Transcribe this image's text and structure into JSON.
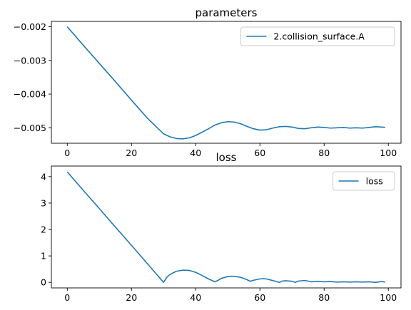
{
  "chart_data": [
    {
      "type": "line",
      "title": "parameters",
      "xlabel": "",
      "ylabel": "",
      "xlim": [
        -4.95,
        103.95
      ],
      "ylim": [
        -0.00546,
        -0.00184
      ],
      "xticks": [
        0,
        20,
        40,
        60,
        80,
        100
      ],
      "yticks": [
        -0.002,
        -0.003,
        -0.004,
        -0.005
      ],
      "ytick_labels": [
        "−0.002",
        "−0.003",
        "−0.004",
        "−0.005"
      ],
      "grid": false,
      "legend": "top-right",
      "color": "#1f77b4",
      "series": [
        {
          "name": "2.collision_surface.A",
          "x": [
            0,
            5,
            10,
            15,
            20,
            25,
            30,
            32,
            34,
            36,
            38,
            40,
            42,
            44,
            46,
            48,
            50,
            52,
            54,
            56,
            58,
            60,
            62,
            64,
            66,
            68,
            70,
            72,
            74,
            76,
            78,
            80,
            82,
            84,
            86,
            88,
            90,
            92,
            94,
            96,
            98,
            99
          ],
          "values": [
            -0.002,
            -0.00255,
            -0.00309,
            -0.00363,
            -0.00418,
            -0.00472,
            -0.00518,
            -0.00527,
            -0.00532,
            -0.00533,
            -0.0053,
            -0.00523,
            -0.00513,
            -0.00503,
            -0.00492,
            -0.00485,
            -0.00482,
            -0.00483,
            -0.00488,
            -0.00496,
            -0.00503,
            -0.00507,
            -0.00506,
            -0.00501,
            -0.00497,
            -0.00496,
            -0.00498,
            -0.00502,
            -0.00503,
            -0.005,
            -0.00498,
            -0.00499,
            -0.00501,
            -0.005,
            -0.00499,
            -0.00501,
            -0.005,
            -0.00501,
            -0.00499,
            -0.00497,
            -0.00498,
            -0.00499
          ]
        }
      ]
    },
    {
      "type": "line",
      "title": "loss",
      "xlabel": "",
      "ylabel": "",
      "xlim": [
        -4.95,
        103.95
      ],
      "ylim": [
        -0.21,
        4.4
      ],
      "xticks": [
        0,
        20,
        40,
        60,
        80,
        100
      ],
      "yticks": [
        0,
        1,
        2,
        3,
        4
      ],
      "ytick_labels": [
        "0",
        "1",
        "2",
        "3",
        "4"
      ],
      "grid": false,
      "legend": "top-right",
      "color": "#1f77b4",
      "series": [
        {
          "name": "loss",
          "x": [
            0,
            5,
            10,
            15,
            20,
            25,
            30,
            31,
            32,
            34,
            36,
            37,
            38,
            40,
            42,
            44,
            46,
            47,
            48,
            50,
            51,
            52,
            54,
            56,
            57,
            58,
            60,
            61,
            62,
            64,
            66,
            67,
            68,
            70,
            71,
            72,
            74,
            75,
            76,
            78,
            80,
            82,
            84,
            86,
            88,
            90,
            92,
            94,
            96,
            98,
            99
          ],
          "values": [
            4.18,
            3.48,
            2.79,
            2.09,
            1.4,
            0.7,
            0.0,
            0.19,
            0.3,
            0.42,
            0.46,
            0.46,
            0.45,
            0.38,
            0.26,
            0.13,
            0.02,
            0.08,
            0.15,
            0.22,
            0.23,
            0.23,
            0.19,
            0.1,
            0.04,
            0.08,
            0.13,
            0.14,
            0.13,
            0.07,
            0.0,
            0.05,
            0.06,
            0.04,
            0.0,
            0.05,
            0.07,
            0.05,
            0.02,
            0.04,
            0.02,
            0.03,
            0.01,
            0.02,
            0.01,
            0.02,
            0.01,
            0.02,
            0.0,
            0.03,
            0.01
          ]
        }
      ]
    }
  ]
}
